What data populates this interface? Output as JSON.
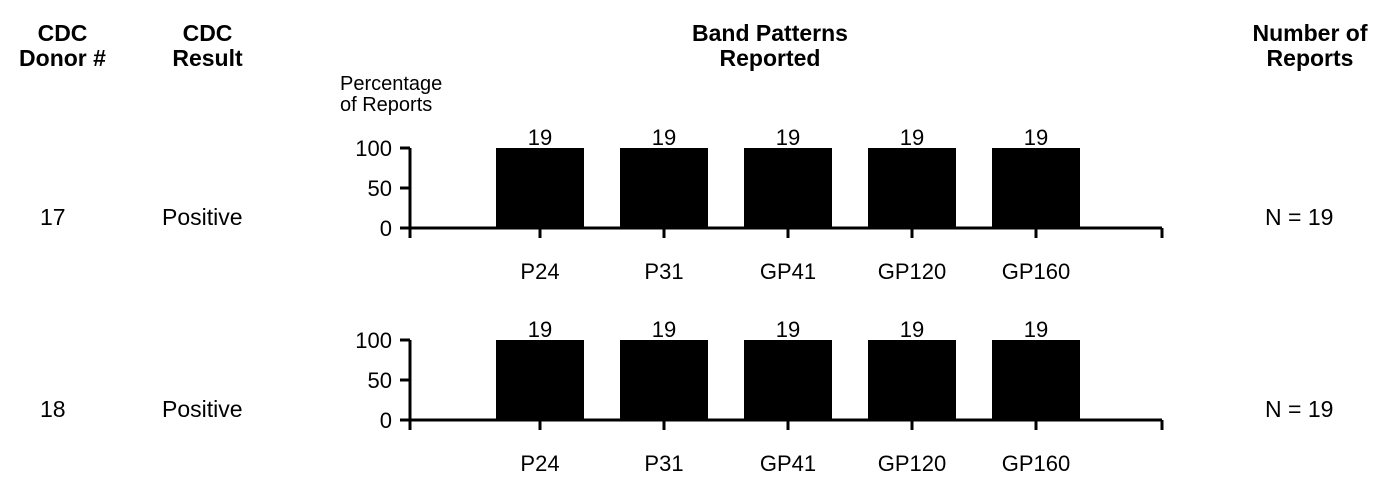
{
  "headers": {
    "donor": "CDC\nDonor #",
    "result": "CDC\nResult",
    "bands": "Band Patterns\nReported",
    "reports": "Number of\nReports"
  },
  "y_axis_caption": "Percentage\nof Reports",
  "rows": [
    {
      "donor": "17",
      "result": "Positive",
      "n_label": "N = 19"
    },
    {
      "donor": "18",
      "result": "Positive",
      "n_label": "N = 19"
    }
  ],
  "chart_data": [
    {
      "type": "bar",
      "categories": [
        "P24",
        "P31",
        "GP41",
        "GP120",
        "GP160"
      ],
      "values": [
        100,
        100,
        100,
        100,
        100
      ],
      "data_labels": [
        "19",
        "19",
        "19",
        "19",
        "19"
      ],
      "ylabel": "Percentage of Reports",
      "yticks": [
        "100",
        "50",
        "0"
      ],
      "ylim": [
        0,
        100
      ],
      "bar_color": "#000000"
    },
    {
      "type": "bar",
      "categories": [
        "P24",
        "P31",
        "GP41",
        "GP120",
        "GP160"
      ],
      "values": [
        100,
        100,
        100,
        100,
        100
      ],
      "data_labels": [
        "19",
        "19",
        "19",
        "19",
        "19"
      ],
      "yticks": [
        "100",
        "50",
        "0"
      ],
      "ylim": [
        0,
        100
      ],
      "bar_color": "#000000"
    }
  ]
}
